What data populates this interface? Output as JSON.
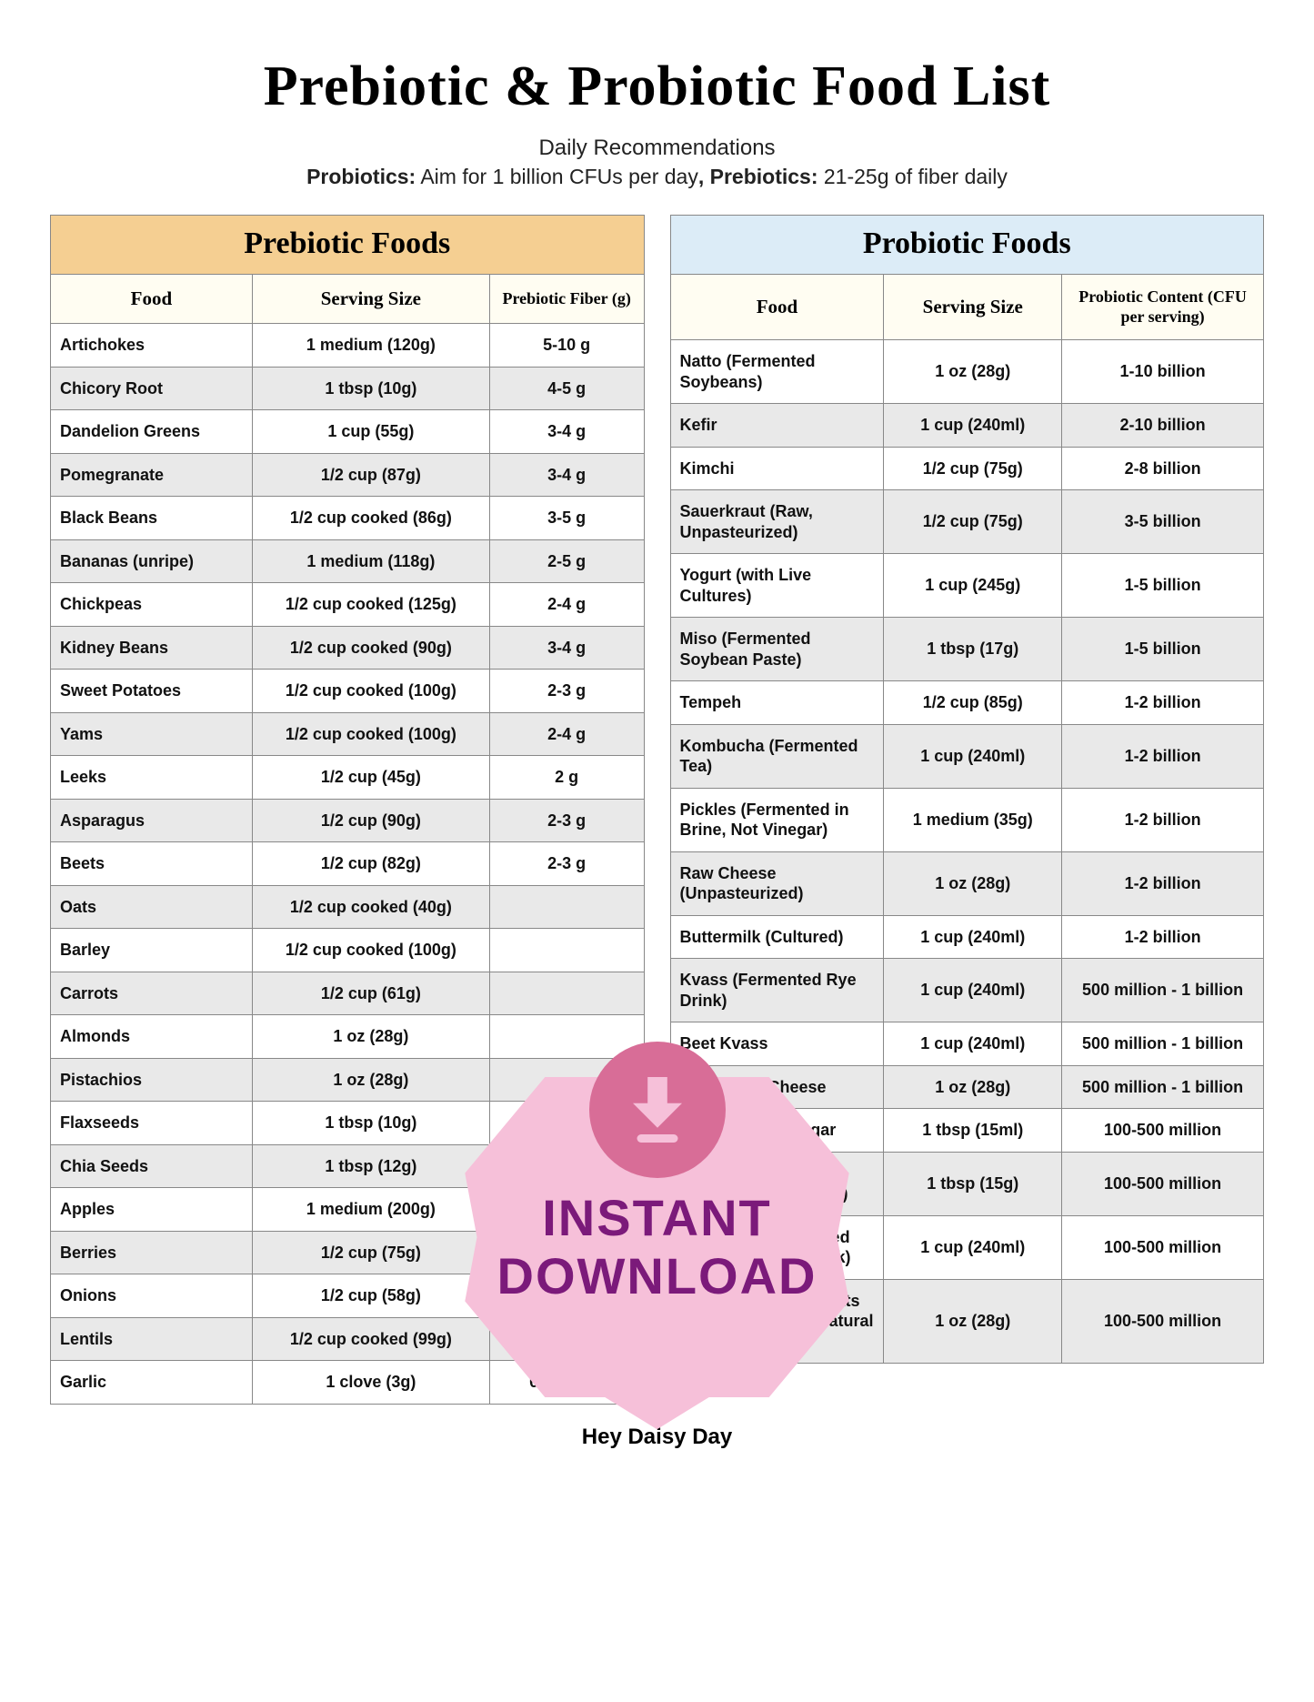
{
  "title": "Prebiotic & Probiotic Food List",
  "subtitle": "Daily Recommendations",
  "recommendation_html_parts": {
    "p1_label": "Probiotics:",
    "p1_text": " Aim for 1 billion CFUs per day",
    "sep": ", ",
    "p2_label": "Prebiotics:",
    "p2_text": " 21-25g of fiber daily"
  },
  "footer": "Hey Daisy Day",
  "badge": {
    "line1": "INSTANT",
    "line2": "DOWNLOAD",
    "text_color": "#7b1a7a",
    "shape_color": "#f6c0d9",
    "circle_color": "#d86d97",
    "arrow_color": "#f6c0d9"
  },
  "prebiotic_table": {
    "title": "Prebiotic Foods",
    "title_bg": "#f5cf92",
    "columns": [
      "Food",
      "Serving Size",
      "Prebiotic Fiber (g)"
    ],
    "rows": [
      [
        "Artichokes",
        "1 medium (120g)",
        "5-10 g"
      ],
      [
        "Chicory Root",
        "1 tbsp (10g)",
        "4-5 g"
      ],
      [
        "Dandelion Greens",
        "1 cup (55g)",
        "3-4 g"
      ],
      [
        "Pomegranate",
        "1/2 cup (87g)",
        "3-4 g"
      ],
      [
        "Black Beans",
        "1/2 cup cooked (86g)",
        "3-5 g"
      ],
      [
        "Bananas (unripe)",
        "1 medium (118g)",
        "2-5 g"
      ],
      [
        "Chickpeas",
        "1/2 cup cooked (125g)",
        "2-4 g"
      ],
      [
        "Kidney Beans",
        "1/2 cup cooked (90g)",
        "3-4 g"
      ],
      [
        "Sweet Potatoes",
        "1/2 cup cooked (100g)",
        "2-3 g"
      ],
      [
        "Yams",
        "1/2 cup cooked (100g)",
        "2-4 g"
      ],
      [
        "Leeks",
        "1/2 cup (45g)",
        "2 g"
      ],
      [
        "Asparagus",
        "1/2 cup (90g)",
        "2-3 g"
      ],
      [
        "Beets",
        "1/2 cup (82g)",
        "2-3 g"
      ],
      [
        "Oats",
        "1/2 cup cooked (40g)",
        ""
      ],
      [
        "Barley",
        "1/2 cup cooked (100g)",
        ""
      ],
      [
        "Carrots",
        "1/2 cup (61g)",
        ""
      ],
      [
        "Almonds",
        "1 oz (28g)",
        ""
      ],
      [
        "Pistachios",
        "1 oz (28g)",
        ""
      ],
      [
        "Flaxseeds",
        "1 tbsp (10g)",
        ""
      ],
      [
        "Chia Seeds",
        "1 tbsp (12g)",
        ""
      ],
      [
        "Apples",
        "1 medium (200g)",
        ""
      ],
      [
        "Berries",
        "1/2 cup (75g)",
        ""
      ],
      [
        "Onions",
        "1/2 cup (58g)",
        "1.5 g"
      ],
      [
        "Lentils",
        "1/2 cup cooked (99g)",
        "2-3 g"
      ],
      [
        "Garlic",
        "1 clove (3g)",
        "0.1 - 0.5 g"
      ]
    ]
  },
  "probiotic_table": {
    "title": "Probiotic Foods",
    "title_bg": "#dcecf7",
    "columns": [
      "Food",
      "Serving Size",
      "Probiotic Content (CFU per serving)"
    ],
    "rows": [
      [
        "Natto (Fermented Soybeans)",
        "1 oz (28g)",
        "1-10 billion"
      ],
      [
        "Kefir",
        "1 cup (240ml)",
        "2-10 billion"
      ],
      [
        "Kimchi",
        "1/2 cup (75g)",
        "2-8 billion"
      ],
      [
        "Sauerkraut (Raw, Unpasteurized)",
        "1/2 cup (75g)",
        "3-5 billion"
      ],
      [
        "Yogurt (with Live Cultures)",
        "1 cup (245g)",
        "1-5 billion"
      ],
      [
        "Miso (Fermented Soybean Paste)",
        "1 tbsp (17g)",
        "1-5 billion"
      ],
      [
        "Tempeh",
        "1/2 cup (85g)",
        "1-2 billion"
      ],
      [
        "Kombucha (Fermented Tea)",
        "1 cup (240ml)",
        "1-2 billion"
      ],
      [
        "Pickles (Fermented in Brine, Not Vinegar)",
        "1 medium (35g)",
        "1-2 billion"
      ],
      [
        "Raw Cheese (Unpasteurized)",
        "1 oz (28g)",
        "1-2 billion"
      ],
      [
        "Buttermilk (Cultured)",
        "1 cup (240ml)",
        "1-2 billion"
      ],
      [
        "Kvass (Fermented Rye Drink)",
        "1 cup (240ml)",
        "500 million - 1 billion"
      ],
      [
        "Beet Kvass",
        "1 cup (240ml)",
        "500 million - 1 billion"
      ],
      [
        "Fermented Cheese",
        "1 oz (28g)",
        "500 million - 1 billion"
      ],
      [
        "Apple Cider Vinegar",
        "1 tbsp (15ml)",
        "100-500 million"
      ],
      [
        "Coconut Yogurt (Cultured, Dairy-Free)",
        "1 tbsp (15g)",
        "100-500 million"
      ],
      [
        "Rejuvelac (Fermented Sprouted Grain Drink)",
        "1 cup (240ml)",
        "100-500 million"
      ],
      [
        "Aged Fermented Meats (e.g., Salami with Natural Cultures)",
        "1 oz (28g)",
        "100-500 million"
      ]
    ]
  }
}
